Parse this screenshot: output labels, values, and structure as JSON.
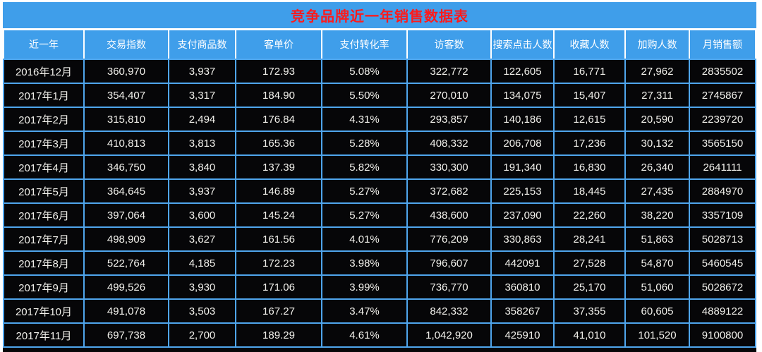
{
  "title": "竞争品牌近一年销售数据表",
  "colors": {
    "blue": "#3F9EEA",
    "border-blue": "#4FA5EC",
    "cell-black": "#060608",
    "title-red": "#FE1B1C",
    "body-text": "#F2F1EC",
    "header-text": "#FFFFFF",
    "page-bg": "#FFFFFF"
  },
  "chart_data": {
    "type": "table",
    "title": "竞争品牌近一年销售数据表",
    "columns": [
      "近一年",
      "交易指数",
      "支付商品数",
      "客单价",
      "支付转化率",
      "访客数",
      "搜索点击人数",
      "收藏人数",
      "加购人数",
      "月销售额"
    ],
    "rows": [
      [
        "2016年12月",
        "360,970",
        "3,937",
        "172.93",
        "5.08%",
        "322,772",
        "122,605",
        "16,771",
        "27,962",
        "2835502"
      ],
      [
        "2017年1月",
        "354,407",
        "3,317",
        "184.90",
        "5.50%",
        "270,010",
        "134,075",
        "15,407",
        "27,311",
        "2745867"
      ],
      [
        "2017年2月",
        "315,810",
        "2,494",
        "176.84",
        "4.31%",
        "293,857",
        "140,186",
        "12,615",
        "20,590",
        "2239720"
      ],
      [
        "2017年3月",
        "410,813",
        "3,813",
        "165.36",
        "5.28%",
        "408,332",
        "206,708",
        "17,236",
        "30,132",
        "3565150"
      ],
      [
        "2017年4月",
        "346,750",
        "3,840",
        "137.39",
        "5.82%",
        "330,300",
        "191,340",
        "16,830",
        "26,340",
        "2641111"
      ],
      [
        "2017年5月",
        "364,645",
        "3,937",
        "146.89",
        "5.27%",
        "372,682",
        "225,153",
        "18,445",
        "27,435",
        "2884970"
      ],
      [
        "2017年6月",
        "397,064",
        "3,600",
        "145.24",
        "5.27%",
        "438,600",
        "237,090",
        "22,260",
        "38,220",
        "3357109"
      ],
      [
        "2017年7月",
        "498,909",
        "3,627",
        "161.56",
        "4.01%",
        "776,209",
        "330,863",
        "28,241",
        "51,863",
        "5028713"
      ],
      [
        "2017年8月",
        "522,764",
        "4,185",
        "172.23",
        "3.98%",
        "796,607",
        "442091",
        "27,528",
        "54,870",
        "5460545"
      ],
      [
        "2017年9月",
        "499,526",
        "3,930",
        "171.06",
        "3.99%",
        "736,770",
        "360810",
        "25,170",
        "51,060",
        "5028672"
      ],
      [
        "2017年10月",
        "491,078",
        "3,503",
        "167.27",
        "3.47%",
        "842,332",
        "358267",
        "37,355",
        "60,605",
        "4889122"
      ],
      [
        "2017年11月",
        "697,738",
        "2,700",
        "189.29",
        "4.61%",
        "1,042,920",
        "425910",
        "41,010",
        "101,520",
        "9100800"
      ]
    ]
  }
}
